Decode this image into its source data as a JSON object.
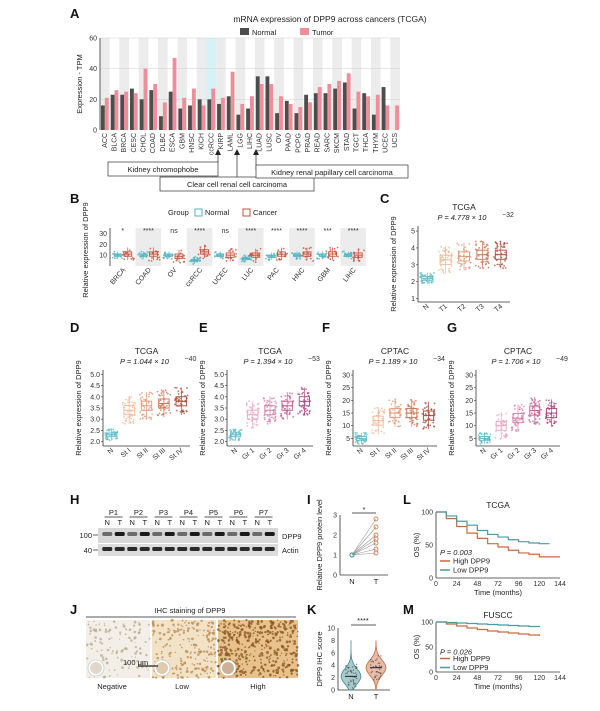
{
  "figure": {
    "panels": {
      "A": "A",
      "B": "B",
      "C": "C",
      "D": "D",
      "E": "E",
      "F": "F",
      "G": "G",
      "H": "H",
      "I": "I",
      "J": "J",
      "K": "K",
      "L": "L",
      "M": "M"
    }
  },
  "colors": {
    "normal": "#4d4d4d",
    "tumor": "#ee8e99",
    "box_normal": "#4fb3bf",
    "box_cancer": "#c9503a",
    "high": "#c96a3d",
    "low": "#4a9aa1"
  },
  "chart_data": [
    {
      "id": "A",
      "type": "bar",
      "title": "mRNA expression of DPP9 across cancers (TCGA)",
      "ylabel": "Expression - TPM",
      "ylim": [
        0,
        60
      ],
      "yticks": [
        "0",
        "20",
        "40",
        "60"
      ],
      "legend": [
        "Normal",
        "Tumor"
      ],
      "categories": [
        "ACC",
        "BLCA",
        "BRCA",
        "CESC",
        "CHOL",
        "COAD",
        "DLBC",
        "ESCA",
        "GBM",
        "HNSC",
        "KICH",
        "ccRCC",
        "KIRP",
        "LAML",
        "LGG",
        "LIHC",
        "LUAD",
        "LUSC",
        "OV",
        "PAAD",
        "PCPG",
        "PRAD",
        "READ",
        "SARC",
        "SKCM",
        "STAD",
        "TGCT",
        "THCA",
        "THYM",
        "UCEC",
        "UCS"
      ],
      "series": [
        {
          "name": "Normal",
          "values": [
            16,
            23,
            23,
            27,
            20,
            26,
            9,
            25,
            14,
            16,
            20,
            20,
            17,
            22,
            10,
            14,
            35,
            35,
            11,
            19,
            11,
            23,
            24,
            24,
            27,
            31,
            14,
            24,
            10,
            28,
            0
          ]
        },
        {
          "name": "Tumor",
          "values": [
            21,
            26,
            25,
            24,
            40,
            30,
            18,
            47,
            21,
            27,
            16,
            27,
            21,
            38,
            17,
            22,
            30,
            30,
            22,
            17,
            15,
            18,
            28,
            30,
            32,
            37,
            25,
            22,
            23,
            16,
            16
          ]
        }
      ],
      "annotations": [
        "Kidney chromophobe",
        "Clear cell renal cell carcinoma",
        "Kidney renal papillary cell carcinoma"
      ]
    },
    {
      "id": "B",
      "type": "box",
      "legend_title": "Group",
      "legend": [
        "Normal",
        "Cancer"
      ],
      "ylabel": "Relative expression of DPP9",
      "yticks": [
        "10",
        "20",
        "30"
      ],
      "categories": [
        "BRCA",
        "COAD",
        "OV",
        "ccRCC",
        "UCEC",
        "LUC",
        "PAC",
        "HNC",
        "GBM",
        "LIHC"
      ],
      "significance": [
        "*",
        "****",
        "ns",
        "****",
        "ns",
        "****",
        "****",
        "****",
        "***",
        "****"
      ],
      "normal_median": [
        10,
        10,
        10,
        5,
        10,
        7,
        9,
        10,
        10,
        10
      ],
      "cancer_median": [
        11,
        11,
        9,
        13,
        10,
        10,
        11,
        11,
        11,
        10
      ]
    },
    {
      "id": "C",
      "type": "box",
      "title": "TCGA",
      "pvalue": "P = 4.778 × 10",
      "pexp": "−32",
      "ylabel": "Relative expression of DPP9",
      "yticks": [
        "1",
        "2",
        "3",
        "4",
        "5"
      ],
      "categories": [
        "N",
        "T1",
        "T2",
        "T3",
        "T4"
      ],
      "medians": [
        2.2,
        3.3,
        3.5,
        3.6,
        3.6
      ]
    },
    {
      "id": "D",
      "type": "box",
      "title": "TCGA",
      "pvalue": "P = 1.044 × 10",
      "pexp": "−40",
      "ylabel": "Relative expression of DPP9",
      "yticks": [
        "2.0",
        "2.5",
        "3.0",
        "3.5",
        "4.0",
        "4.5",
        "5.0"
      ],
      "categories": [
        "N",
        "St I",
        "St II",
        "St III",
        "St IV"
      ],
      "medians": [
        2.3,
        3.4,
        3.6,
        3.7,
        3.8
      ]
    },
    {
      "id": "E",
      "type": "box",
      "title": "TCGA",
      "pvalue": "P = 1.394 × 10",
      "pexp": "−53",
      "ylabel": "Relative expression of DPP9",
      "yticks": [
        "2.0",
        "2.5",
        "3.0",
        "3.5",
        "4.0",
        "4.5",
        "5.0"
      ],
      "categories": [
        "N",
        "Gr 1",
        "Gr 2",
        "Gr 3",
        "Gr 4"
      ],
      "medians": [
        2.3,
        3.2,
        3.4,
        3.6,
        3.8
      ]
    },
    {
      "id": "F",
      "type": "box",
      "title": "CPTAC",
      "pvalue": "P = 1.189 × 10",
      "pexp": "−34",
      "ylabel": "Relative expression of DPP9",
      "yticks": [
        "5",
        "10",
        "15",
        "20",
        "25",
        "30"
      ],
      "categories": [
        "N",
        "St I",
        "St II",
        "St III",
        "St IV"
      ],
      "medians": [
        5,
        12,
        15,
        15,
        14
      ]
    },
    {
      "id": "G",
      "type": "box",
      "title": "CPTAC",
      "pvalue": "P = 1.706 × 10",
      "pexp": "−49",
      "ylabel": "Relative expression of DPP9",
      "yticks": [
        "5",
        "10",
        "15",
        "20",
        "25",
        "30"
      ],
      "categories": [
        "N",
        "Gr 1",
        "Gr 2",
        "Gr 3",
        "Gr 4"
      ],
      "medians": [
        5,
        10,
        13,
        16,
        15
      ]
    },
    {
      "id": "I",
      "type": "scatter",
      "ylabel": "Relative DPP9 protein level",
      "yticks": [
        "0",
        "1",
        "2",
        "3"
      ],
      "categories": [
        "N",
        "T"
      ],
      "pairs": [
        [
          1.0,
          2.4
        ],
        [
          1.0,
          1.6
        ],
        [
          1.0,
          1.3
        ],
        [
          1.0,
          2.0
        ],
        [
          1.0,
          1.1
        ],
        [
          1.0,
          2.8
        ],
        [
          1.0,
          1.8
        ]
      ],
      "significance": "*"
    },
    {
      "id": "K",
      "type": "violin",
      "ylabel": "DPP9 IHC score",
      "yticks": [
        "0",
        "2",
        "4",
        "6",
        "8",
        "10"
      ],
      "categories": [
        "N",
        "T"
      ],
      "medians": [
        2.2,
        3.6
      ],
      "significance": "****"
    },
    {
      "id": "L",
      "type": "line",
      "title": "TCGA",
      "ylabel": "OS (%)",
      "xlabel": "Time (months)",
      "yticks": [
        "0",
        "50",
        "100"
      ],
      "xticks": [
        "0",
        "24",
        "48",
        "72",
        "96",
        "120",
        "144"
      ],
      "pvalue": "P = 0.003",
      "series": [
        {
          "name": "High DPP9",
          "points": [
            [
              0,
              100
            ],
            [
              12,
              90
            ],
            [
              24,
              78
            ],
            [
              36,
              68
            ],
            [
              48,
              60
            ],
            [
              60,
              52
            ],
            [
              72,
              47
            ],
            [
              84,
              42
            ],
            [
              96,
              38
            ],
            [
              108,
              36
            ],
            [
              120,
              32
            ],
            [
              132,
              32
            ],
            [
              144,
              32
            ]
          ]
        },
        {
          "name": "Low DPP9",
          "points": [
            [
              0,
              100
            ],
            [
              12,
              94
            ],
            [
              24,
              86
            ],
            [
              36,
              80
            ],
            [
              48,
              72
            ],
            [
              60,
              66
            ],
            [
              72,
              62
            ],
            [
              84,
              58
            ],
            [
              96,
              55
            ],
            [
              108,
              53
            ],
            [
              120,
              52
            ],
            [
              132,
              52
            ]
          ]
        }
      ]
    },
    {
      "id": "M",
      "type": "line",
      "title": "FUSCC",
      "ylabel": "OS (%)",
      "xlabel": "Time (months)",
      "yticks": [
        "0",
        "50",
        "100"
      ],
      "xticks": [
        "0",
        "24",
        "48",
        "72",
        "96",
        "120",
        "144"
      ],
      "pvalue": "P = 0.026",
      "series": [
        {
          "name": "High DPP9",
          "points": [
            [
              0,
              100
            ],
            [
              12,
              96
            ],
            [
              24,
              92
            ],
            [
              36,
              88
            ],
            [
              48,
              85
            ],
            [
              60,
              82
            ],
            [
              72,
              80
            ],
            [
              84,
              78
            ],
            [
              96,
              76
            ],
            [
              108,
              74
            ],
            [
              120,
              72
            ]
          ]
        },
        {
          "name": "Low DPP9",
          "points": [
            [
              0,
              100
            ],
            [
              12,
              99
            ],
            [
              24,
              98
            ],
            [
              36,
              97
            ],
            [
              48,
              96
            ],
            [
              60,
              95
            ],
            [
              72,
              94
            ],
            [
              84,
              93
            ],
            [
              96,
              92
            ],
            [
              108,
              91
            ],
            [
              120,
              90
            ]
          ]
        }
      ]
    }
  ],
  "blot": {
    "patients": [
      "P1",
      "P2",
      "P3",
      "P4",
      "P5",
      "P6",
      "P7"
    ],
    "lanes": [
      "N",
      "T",
      "N",
      "T",
      "N",
      "T",
      "N",
      "T",
      "N",
      "T",
      "N",
      "T",
      "N",
      "T"
    ],
    "markers": [
      "100",
      "40"
    ],
    "bands": [
      "DPP9",
      "Actin"
    ]
  },
  "ihc": {
    "title": "IHC staining of DPP9",
    "labels": [
      "Negative",
      "Low",
      "High"
    ],
    "scale": "100 μm"
  }
}
